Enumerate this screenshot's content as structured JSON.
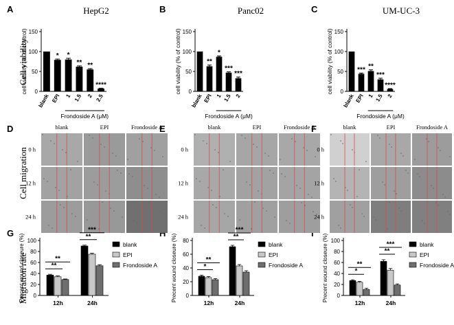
{
  "panel_letters": [
    "A",
    "B",
    "C",
    "D",
    "E",
    "F",
    "G",
    "H",
    "I"
  ],
  "row_labels": {
    "viability": "Cell viability",
    "migration": "Cell migration",
    "rate": "Migration rate"
  },
  "cell_lines": [
    "HepG2",
    "Panc02",
    "UM-UC-3"
  ],
  "migration_images": {
    "columns": [
      "blank",
      "EPI",
      "Frondoside A"
    ],
    "rows": [
      "0 h",
      "12 h",
      "24 h"
    ]
  },
  "colors": {
    "bar_black": "#000000",
    "bar_light": "#c8c8c8",
    "bar_mid": "#6e6e6e",
    "scratch_line": "#d94a4a",
    "micrograph_base": "#9a9a9a"
  },
  "chart_data": [
    {
      "type": "bar",
      "title": "HepG2",
      "ylabel": "cell viability (% of control)",
      "ylim": [
        0,
        150
      ],
      "yticks": [
        "0",
        "50",
        "100",
        "150"
      ],
      "categories": [
        "blank",
        "EPI",
        "1",
        "1.5",
        "2",
        "2.5"
      ],
      "values": [
        100,
        79,
        80,
        62,
        55,
        7
      ],
      "errors": [
        0,
        2,
        3,
        2,
        2,
        1
      ],
      "significance": [
        "",
        "*",
        "*",
        "**",
        "**",
        "****"
      ],
      "group_label": "Frondoside A (μM)",
      "group_range": [
        2,
        5
      ]
    },
    {
      "type": "bar",
      "title": "Panc02",
      "ylabel": "cell viability (% of control)",
      "ylim": [
        0,
        150
      ],
      "yticks": [
        "0",
        "50",
        "100",
        "150"
      ],
      "categories": [
        "blank",
        "EPI",
        "1",
        "1.5",
        "2"
      ],
      "values": [
        100,
        63,
        87,
        47,
        33
      ],
      "errors": [
        0,
        3,
        2,
        2,
        3
      ],
      "significance": [
        "",
        "**",
        "*",
        "***",
        "***"
      ],
      "group_label": "Frondoside A (μM)",
      "group_range": [
        2,
        4
      ]
    },
    {
      "type": "bar",
      "title": "UM-UC-3",
      "ylabel": "cell viability (% of control)",
      "ylim": [
        0,
        150
      ],
      "yticks": [
        "0",
        "50",
        "100",
        "150"
      ],
      "categories": [
        "blank",
        "EPI",
        "1",
        "1.5",
        "2"
      ],
      "values": [
        100,
        44,
        51,
        30,
        6
      ],
      "errors": [
        0,
        2,
        3,
        3,
        1
      ],
      "significance": [
        "",
        "***",
        "**",
        "***",
        "****"
      ],
      "group_label": "Frondoside A (μM)",
      "group_range": [
        2,
        4
      ]
    },
    {
      "type": "bar",
      "ylabel": "Precent wound closeure (%)",
      "ylim": [
        0,
        100
      ],
      "yticks": [
        "0",
        "20",
        "40",
        "60",
        "80",
        "100"
      ],
      "categories": [
        "12h",
        "24h"
      ],
      "series": [
        {
          "name": "blank",
          "values": [
            37,
            90
          ],
          "errors": [
            1.5,
            1.5
          ]
        },
        {
          "name": "EPI",
          "values": [
            34,
            75
          ],
          "errors": [
            1.5,
            2
          ]
        },
        {
          "name": "Frondoside A",
          "values": [
            29,
            54
          ],
          "errors": [
            1,
            2
          ]
        }
      ],
      "comparisons": [
        {
          "category": 0,
          "from": 0,
          "to": 1,
          "label": "**"
        },
        {
          "category": 0,
          "from": 0,
          "to": 2,
          "label": "**"
        },
        {
          "category": 1,
          "from": 0,
          "to": 1,
          "label": "**"
        },
        {
          "category": 1,
          "from": 0,
          "to": 2,
          "label": "***"
        }
      ]
    },
    {
      "type": "bar",
      "ylabel": "Precent wound closeure (%)",
      "ylim": [
        0,
        80
      ],
      "yticks": [
        "0",
        "20",
        "40",
        "60",
        "80"
      ],
      "categories": [
        "12h",
        "24h"
      ],
      "series": [
        {
          "name": "blank",
          "values": [
            28,
            71
          ],
          "errors": [
            1.5,
            2
          ]
        },
        {
          "name": "EPI",
          "values": [
            26,
            43
          ],
          "errors": [
            1.5,
            2
          ]
        },
        {
          "name": "Frondoside A",
          "values": [
            23,
            34
          ],
          "errors": [
            1.5,
            2
          ]
        }
      ],
      "comparisons": [
        {
          "category": 0,
          "from": 0,
          "to": 1,
          "label": "*"
        },
        {
          "category": 0,
          "from": 0,
          "to": 2,
          "label": "**"
        },
        {
          "category": 1,
          "from": 0,
          "to": 1,
          "label": "**"
        },
        {
          "category": 1,
          "from": 0,
          "to": 2,
          "label": "***"
        }
      ]
    },
    {
      "type": "bar",
      "ylabel": "Precent wound closeure (%)",
      "ylim": [
        0,
        100
      ],
      "yticks": [
        "0",
        "20",
        "40",
        "60",
        "80",
        "100"
      ],
      "categories": [
        "12h",
        "24h"
      ],
      "series": [
        {
          "name": "blank",
          "values": [
            27,
            62
          ],
          "errors": [
            1.5,
            3
          ]
        },
        {
          "name": "EPI",
          "values": [
            24,
            46
          ],
          "errors": [
            1.5,
            3
          ]
        },
        {
          "name": "Frondoside A",
          "values": [
            11,
            19
          ],
          "errors": [
            2,
            2
          ]
        }
      ],
      "comparisons": [
        {
          "category": 0,
          "from": 0,
          "to": 1,
          "label": "*"
        },
        {
          "category": 0,
          "from": 0,
          "to": 2,
          "label": "**"
        },
        {
          "category": 1,
          "from": 0,
          "to": 1,
          "label": "**"
        },
        {
          "category": 1,
          "from": 0,
          "to": 2,
          "label": "***"
        }
      ]
    }
  ]
}
